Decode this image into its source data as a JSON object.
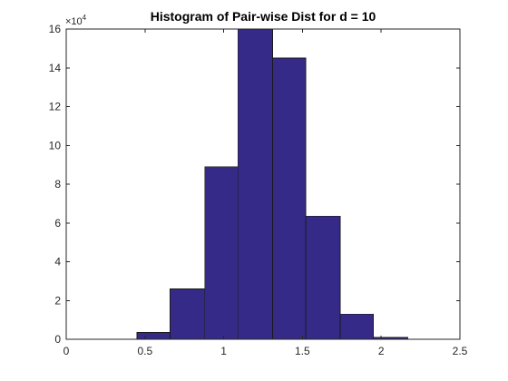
{
  "chart_data": {
    "type": "bar",
    "title": "Histogram of Pair-wise Dist for d = 10",
    "xlabel": "",
    "ylabel": "",
    "xlim": [
      0,
      2.5
    ],
    "ylim": [
      0,
      16
    ],
    "y_exponent_label": "×10",
    "y_exponent_power": "4",
    "x_ticks": [
      0,
      0.5,
      1,
      1.5,
      2,
      2.5
    ],
    "x_tick_labels": [
      "0",
      "0.5",
      "1",
      "1.5",
      "2",
      "2.5"
    ],
    "y_ticks": [
      0,
      2,
      4,
      6,
      8,
      10,
      12,
      14,
      16
    ],
    "y_tick_labels": [
      "0",
      "2",
      "4",
      "6",
      "8",
      "10",
      "12",
      "14",
      "16"
    ],
    "bins": [
      {
        "x0": 0.45,
        "x1": 0.66,
        "value": 0.35
      },
      {
        "x0": 0.66,
        "x1": 0.88,
        "value": 2.6
      },
      {
        "x0": 0.88,
        "x1": 1.09,
        "value": 8.9
      },
      {
        "x0": 1.09,
        "x1": 1.31,
        "value": 16.0
      },
      {
        "x0": 1.31,
        "x1": 1.52,
        "value": 14.5
      },
      {
        "x0": 1.52,
        "x1": 1.74,
        "value": 6.35
      },
      {
        "x0": 1.74,
        "x1": 1.95,
        "value": 1.3
      },
      {
        "x0": 1.95,
        "x1": 2.17,
        "value": 0.1
      }
    ],
    "bar_color": "#352a87",
    "grid": false,
    "box": true
  }
}
